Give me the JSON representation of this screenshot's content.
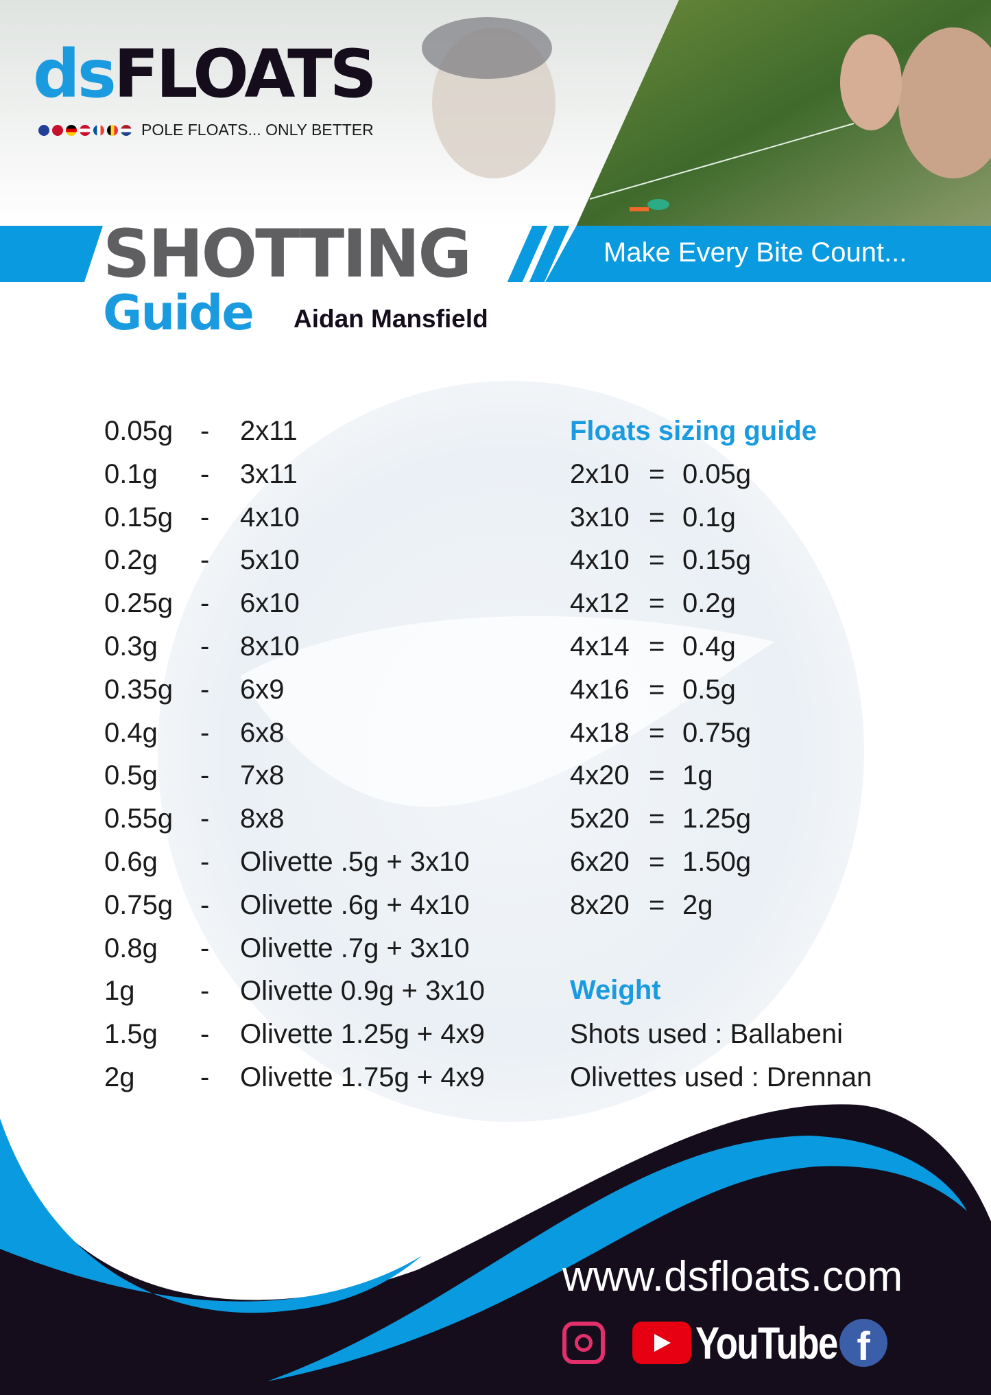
{
  "brand": {
    "logo_ds": "ds",
    "logo_floats": "FLOATS",
    "tagline": "POLE FLOATS... ONLY BETTER"
  },
  "header": {
    "title": "SHOTTING",
    "guide": "Guide",
    "author": "Aidan Mansfield",
    "slogan": "Make Every Bite Count..."
  },
  "watermark": "dsfloats",
  "shotting_table": [
    {
      "weight": "0.05g",
      "sep": "-",
      "shot": "2x11"
    },
    {
      "weight": "0.1g",
      "sep": "-",
      "shot": "3x11"
    },
    {
      "weight": "0.15g",
      "sep": "-",
      "shot": "4x10"
    },
    {
      "weight": "0.2g",
      "sep": "-",
      "shot": "5x10"
    },
    {
      "weight": "0.25g",
      "sep": "-",
      "shot": "6x10"
    },
    {
      "weight": "0.3g",
      "sep": "-",
      "shot": "8x10"
    },
    {
      "weight": "0.35g",
      "sep": "-",
      "shot": "6x9"
    },
    {
      "weight": "0.4g",
      "sep": "-",
      "shot": "6x8"
    },
    {
      "weight": "0.5g",
      "sep": "-",
      "shot": "7x8"
    },
    {
      "weight": "0.55g",
      "sep": "-",
      "shot": "8x8"
    },
    {
      "weight": "0.6g",
      "sep": "-",
      "shot": "Olivette .5g + 3x10"
    },
    {
      "weight": "0.75g",
      "sep": "-",
      "shot": "Olivette .6g + 4x10"
    },
    {
      "weight": "0.8g",
      "sep": "-",
      "shot": "Olivette .7g + 3x10"
    },
    {
      "weight": "1g",
      "sep": "-",
      "shot": "Olivette 0.9g + 3x10"
    },
    {
      "weight": "1.5g",
      "sep": "-",
      "shot": "Olivette 1.25g + 4x9"
    },
    {
      "weight": "2g",
      "sep": "-",
      "shot": "Olivette 1.75g + 4x9"
    }
  ],
  "sizing": {
    "heading": "Floats sizing guide",
    "rows": [
      {
        "size": "2x10",
        "eq": "=",
        "weight": "0.05g"
      },
      {
        "size": "3x10",
        "eq": "=",
        "weight": "0.1g"
      },
      {
        "size": "4x10",
        "eq": "=",
        "weight": "0.15g"
      },
      {
        "size": "4x12",
        "eq": "=",
        "weight": "0.2g"
      },
      {
        "size": "4x14",
        "eq": "=",
        "weight": "0.4g"
      },
      {
        "size": "4x16",
        "eq": "=",
        "weight": "0.5g"
      },
      {
        "size": "4x18",
        "eq": "=",
        "weight": "0.75g"
      },
      {
        "size": "4x20",
        "eq": "=",
        "weight": "1g"
      },
      {
        "size": "5x20",
        "eq": "=",
        "weight": "1.25g"
      },
      {
        "size": "6x20",
        "eq": "=",
        "weight": "1.50g"
      },
      {
        "size": "8x20",
        "eq": "=",
        "weight": "2g"
      }
    ]
  },
  "weight": {
    "heading": "Weight",
    "shots": "Shots used : Ballabeni",
    "olivettes": "Olivettes used : Drennan"
  },
  "footer": {
    "url": "www.dsfloats.com",
    "youtube": "YouTube",
    "facebook": "f"
  },
  "colors": {
    "accent": "#0a9ae0",
    "dark": "#150d1c",
    "title_gray": "#5f5f62"
  }
}
